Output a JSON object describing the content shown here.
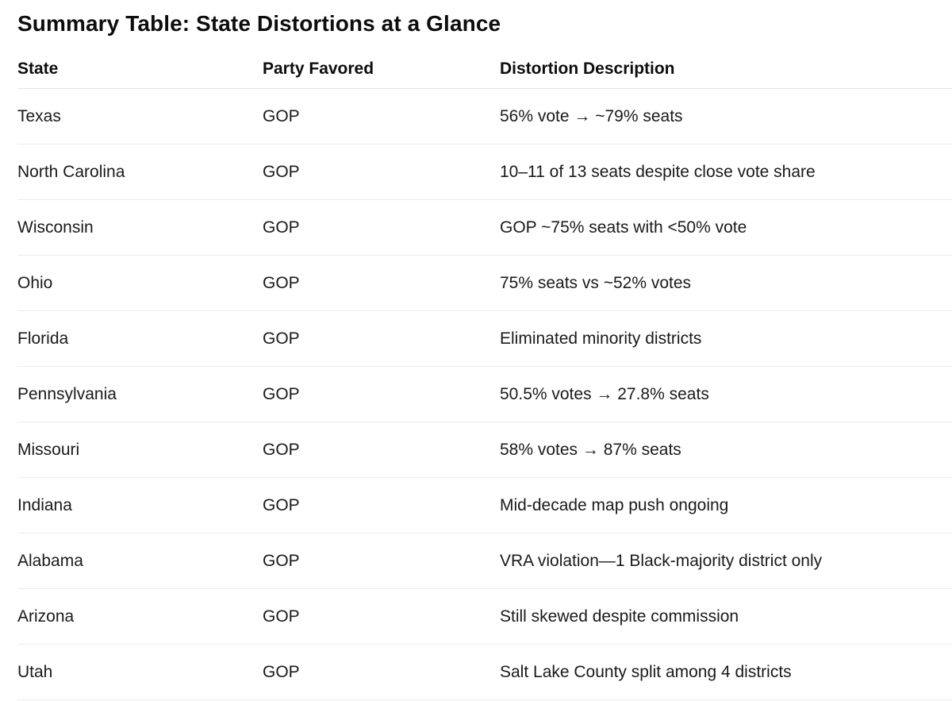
{
  "page": {
    "title": "Summary Table: State Distortions at a Glance",
    "background_color": "#ffffff",
    "text_color": "#0d0d0d",
    "header_divider_color": "#e3e3e3",
    "row_divider_color": "#ececec"
  },
  "table": {
    "columns": [
      {
        "key": "state",
        "label": "State"
      },
      {
        "key": "party",
        "label": "Party Favored"
      },
      {
        "key": "description",
        "label": "Distortion Description"
      }
    ],
    "rows": [
      {
        "state": "Texas",
        "party": "GOP",
        "description": "56% vote → ~79% seats"
      },
      {
        "state": "North Carolina",
        "party": "GOP",
        "description": "10–11 of 13 seats despite close vote share"
      },
      {
        "state": "Wisconsin",
        "party": "GOP",
        "description": "GOP ~75% seats with <50% vote"
      },
      {
        "state": "Ohio",
        "party": "GOP",
        "description": "75% seats vs ~52% votes"
      },
      {
        "state": "Florida",
        "party": "GOP",
        "description": "Eliminated minority districts"
      },
      {
        "state": "Pennsylvania",
        "party": "GOP",
        "description": "50.5% votes → 27.8% seats"
      },
      {
        "state": "Missouri",
        "party": "GOP",
        "description": "58% votes → 87% seats"
      },
      {
        "state": "Indiana",
        "party": "GOP",
        "description": "Mid-decade map push ongoing"
      },
      {
        "state": "Alabama",
        "party": "GOP",
        "description": "VRA violation—1 Black-majority district only"
      },
      {
        "state": "Arizona",
        "party": "GOP",
        "description": "Still skewed despite commission"
      },
      {
        "state": "Utah",
        "party": "GOP",
        "description": "Salt Lake County split among 4 districts"
      }
    ]
  }
}
